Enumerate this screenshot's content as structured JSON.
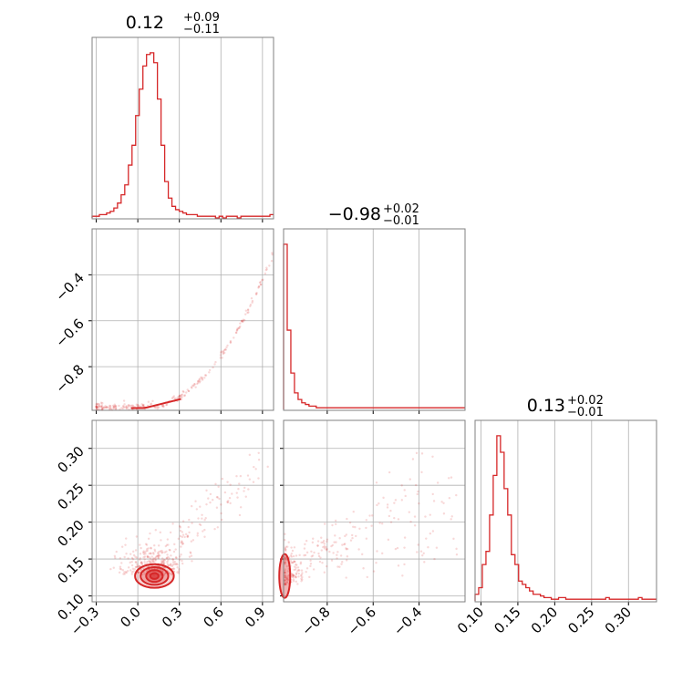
{
  "colors": {
    "series": "#d62728",
    "grid": "#b0b0b0",
    "frame": "#808080"
  },
  "chart_data": {
    "type": "corner",
    "grid": true,
    "titles": [
      {
        "value": "0.12",
        "plus": "+0.09",
        "minus": "−0.11"
      },
      {
        "value": "−0.98",
        "plus": "+0.02",
        "minus": "−0.01"
      },
      {
        "value": "0.13",
        "plus": "+0.02",
        "minus": "−0.01"
      }
    ],
    "parameters": [
      {
        "range": [
          -0.33,
          0.98
        ],
        "ticks": [
          -0.3,
          0.0,
          0.3,
          0.6,
          0.9
        ],
        "tick_labels": [
          "−0.3",
          "0.0",
          "0.3",
          "0.6",
          "0.9"
        ]
      },
      {
        "range": [
          -0.99,
          -0.2
        ],
        "ticks": [
          -0.8,
          -0.6,
          -0.4
        ],
        "tick_labels": [
          "−0.8",
          "−0.6",
          "−0.4"
        ]
      },
      {
        "range": [
          0.092,
          0.338
        ],
        "ticks": [
          0.1,
          0.15,
          0.2,
          0.25,
          0.3
        ],
        "tick_labels": [
          "0.10",
          "0.15",
          "0.20",
          "0.25",
          "0.30"
        ]
      }
    ],
    "histograms": [
      {
        "edges_range": [
          -0.33,
          0.98
        ],
        "counts": [
          1,
          1,
          2,
          2,
          3,
          4,
          6,
          9,
          14,
          20,
          32,
          44,
          62,
          78,
          92,
          99,
          100,
          94,
          72,
          44,
          22,
          12,
          7,
          5,
          4,
          3,
          2,
          2,
          2,
          1,
          1,
          1,
          1,
          1,
          0,
          1,
          0,
          1,
          1,
          1,
          0,
          1,
          1,
          1,
          1,
          1,
          1,
          1,
          1,
          2
        ]
      },
      {
        "edges_range": [
          -0.99,
          -0.2
        ],
        "counts": [
          100,
          48,
          22,
          10,
          6,
          4,
          3,
          2,
          2,
          1,
          1,
          1,
          1,
          1,
          1,
          1,
          1,
          1,
          1,
          1,
          1,
          1,
          1,
          1,
          1,
          1,
          1,
          1,
          1,
          1,
          1,
          1,
          1,
          1,
          1,
          1,
          1,
          1,
          1,
          1,
          1,
          1,
          1,
          1,
          1,
          1,
          1,
          1,
          1,
          1
        ]
      },
      {
        "edges_range": [
          0.092,
          0.338
        ],
        "counts": [
          4,
          8,
          22,
          30,
          52,
          76,
          100,
          90,
          68,
          52,
          28,
          22,
          12,
          10,
          8,
          6,
          4,
          4,
          3,
          2,
          2,
          1,
          1,
          2,
          2,
          1,
          1,
          1,
          1,
          1,
          1,
          1,
          1,
          1,
          1,
          1,
          2,
          1,
          1,
          1,
          1,
          1,
          1,
          1,
          1,
          2,
          1,
          1,
          1,
          1
        ]
      }
    ],
    "scatter_pairs": [
      {
        "x_param": 0,
        "y_param": 1
      },
      {
        "x_param": 0,
        "y_param": 2
      },
      {
        "x_param": 1,
        "y_param": 2
      }
    ]
  }
}
